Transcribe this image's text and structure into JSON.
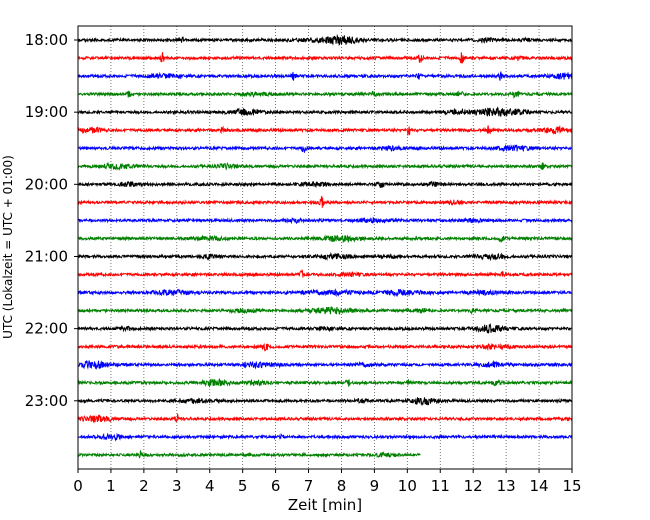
{
  "chart_data": {
    "type": "line",
    "title": "",
    "xlabel": "Zeit  [min]",
    "ylabel": "UTC (Lokalzeit = UTC + 01:00)",
    "xlim": [
      0,
      15
    ],
    "x_ticks": [
      "0",
      "1",
      "2",
      "3",
      "4",
      "5",
      "6",
      "7",
      "8",
      "9",
      "10",
      "11",
      "12",
      "13",
      "14",
      "15"
    ],
    "y_ticks": [
      "18:00",
      "19:00",
      "20:00",
      "21:00",
      "22:00",
      "23:00"
    ],
    "grid": "x-dotted",
    "legend": "none",
    "trace_colors": [
      "#000000",
      "#ff0000",
      "#0000ff",
      "#008000"
    ],
    "series": [
      {
        "start": "18:00",
        "x_end": 15,
        "bursts": [
          [
            3.1,
            0.15,
            2
          ],
          [
            7.5,
            0.8,
            1.8
          ],
          [
            8.1,
            0.4,
            2.5
          ],
          [
            12.5,
            0.4,
            1.5
          ],
          [
            13.6,
            0.15,
            1.5
          ]
        ]
      },
      {
        "start": "18:15",
        "x_end": 15,
        "bursts": [
          [
            2.55,
            0.06,
            5
          ],
          [
            10.4,
            0.06,
            5
          ],
          [
            11.65,
            0.06,
            5
          ],
          [
            13.4,
            0.1,
            2
          ]
        ]
      },
      {
        "start": "18:30",
        "x_end": 15,
        "bursts": [
          [
            2.6,
            0.5,
            1.5
          ],
          [
            6.55,
            0.06,
            5
          ],
          [
            10.35,
            0.06,
            3
          ],
          [
            12.85,
            0.06,
            5
          ],
          [
            14.8,
            0.4,
            2.5
          ]
        ]
      },
      {
        "start": "18:45",
        "x_end": 15,
        "bursts": [
          [
            1.55,
            0.08,
            3
          ],
          [
            5.4,
            0.4,
            1.5
          ],
          [
            9.0,
            0.1,
            2
          ],
          [
            11.6,
            0.1,
            2
          ],
          [
            13.3,
            0.08,
            4
          ]
        ]
      },
      {
        "start": "19:00",
        "x_end": 15,
        "bursts": [
          [
            5.1,
            0.5,
            2.5
          ],
          [
            11.5,
            0.3,
            2
          ],
          [
            12.6,
            0.6,
            3.5
          ],
          [
            13.4,
            0.3,
            1.5
          ]
        ]
      },
      {
        "start": "19:15",
        "x_end": 15,
        "bursts": [
          [
            0.4,
            0.3,
            2
          ],
          [
            4.4,
            0.06,
            3
          ],
          [
            10.05,
            0.06,
            4
          ],
          [
            12.45,
            0.06,
            5
          ],
          [
            14.5,
            0.4,
            2.5
          ]
        ]
      },
      {
        "start": "19:30",
        "x_end": 15,
        "bursts": [
          [
            6.85,
            0.06,
            5
          ],
          [
            9.5,
            0.3,
            1.5
          ],
          [
            13.2,
            0.5,
            2
          ]
        ]
      },
      {
        "start": "19:45",
        "x_end": 15,
        "bursts": [
          [
            1.2,
            0.6,
            2
          ],
          [
            4.5,
            0.3,
            1.5
          ],
          [
            14.1,
            0.06,
            3
          ]
        ]
      },
      {
        "start": "20:00",
        "x_end": 15,
        "bursts": [
          [
            1.5,
            0.4,
            1.5
          ],
          [
            7.2,
            0.5,
            1.5
          ],
          [
            9.2,
            0.1,
            2.5
          ],
          [
            10.8,
            0.3,
            1.5
          ]
        ]
      },
      {
        "start": "20:15",
        "x_end": 15,
        "bursts": [
          [
            7.4,
            0.06,
            5
          ],
          [
            11.4,
            0.2,
            1.5
          ]
        ]
      },
      {
        "start": "20:30",
        "x_end": 15,
        "bursts": [
          [
            6.6,
            0.3,
            1.5
          ],
          [
            9.0,
            0.5,
            1.5
          ],
          [
            12.0,
            0.3,
            1.5
          ]
        ]
      },
      {
        "start": "20:45",
        "x_end": 15,
        "bursts": [
          [
            4.0,
            0.5,
            1.5
          ],
          [
            8.0,
            0.6,
            2.2
          ],
          [
            12.85,
            0.08,
            3
          ]
        ]
      },
      {
        "start": "21:00",
        "x_end": 15,
        "bursts": [
          [
            4.0,
            0.2,
            1.5
          ],
          [
            7.8,
            0.5,
            2
          ],
          [
            9.5,
            0.2,
            1.5
          ],
          [
            12.5,
            0.5,
            2
          ]
        ]
      },
      {
        "start": "21:15",
        "x_end": 15,
        "bursts": [
          [
            6.8,
            0.06,
            4
          ],
          [
            8.3,
            0.3,
            1.2
          ],
          [
            12.9,
            0.06,
            2
          ]
        ]
      },
      {
        "start": "21:30",
        "x_end": 15,
        "bursts": [
          [
            2.9,
            0.6,
            2
          ],
          [
            7.6,
            0.8,
            1.8
          ],
          [
            9.8,
            0.8,
            1.8
          ],
          [
            12.3,
            0.4,
            1.5
          ]
        ]
      },
      {
        "start": "21:45",
        "x_end": 15,
        "bursts": [
          [
            5.0,
            0.4,
            1.2
          ],
          [
            7.7,
            0.6,
            2.5
          ],
          [
            10.4,
            0.2,
            1.5
          ],
          [
            12.0,
            0.06,
            3.5
          ]
        ]
      },
      {
        "start": "22:00",
        "x_end": 15,
        "bursts": [
          [
            1.5,
            0.2,
            1.2
          ],
          [
            7.5,
            0.3,
            1.2
          ],
          [
            12.5,
            0.4,
            3.5
          ]
        ]
      },
      {
        "start": "22:15",
        "x_end": 15,
        "bursts": [
          [
            5.7,
            0.06,
            4
          ],
          [
            12.7,
            0.4,
            2
          ]
        ]
      },
      {
        "start": "22:30",
        "x_end": 15,
        "bursts": [
          [
            0.5,
            0.4,
            3.5
          ],
          [
            5.5,
            0.6,
            2
          ],
          [
            8.7,
            0.3,
            1.5
          ],
          [
            12.6,
            0.4,
            2
          ]
        ]
      },
      {
        "start": "22:45",
        "x_end": 15,
        "bursts": [
          [
            4.2,
            0.4,
            3
          ],
          [
            5.4,
            0.3,
            1.5
          ],
          [
            8.2,
            0.06,
            3.5
          ],
          [
            10.0,
            0.06,
            3
          ],
          [
            12.7,
            0.15,
            2
          ]
        ]
      },
      {
        "start": "23:00",
        "x_end": 15,
        "bursts": [
          [
            3.5,
            0.4,
            1.8
          ],
          [
            8.6,
            0.2,
            1.2
          ],
          [
            10.5,
            0.4,
            3
          ]
        ]
      },
      {
        "start": "23:15",
        "x_end": 15,
        "bursts": [
          [
            0.6,
            0.5,
            2.2
          ],
          [
            3.0,
            0.05,
            5
          ]
        ]
      },
      {
        "start": "23:30",
        "x_end": 15,
        "bursts": [
          [
            1.0,
            0.4,
            2
          ],
          [
            6.2,
            0.05,
            3
          ]
        ]
      },
      {
        "start": "23:45",
        "x_end": 10.4,
        "bursts": [
          [
            1.9,
            0.08,
            2.5
          ],
          [
            9.3,
            0.3,
            1.2
          ]
        ]
      }
    ]
  }
}
